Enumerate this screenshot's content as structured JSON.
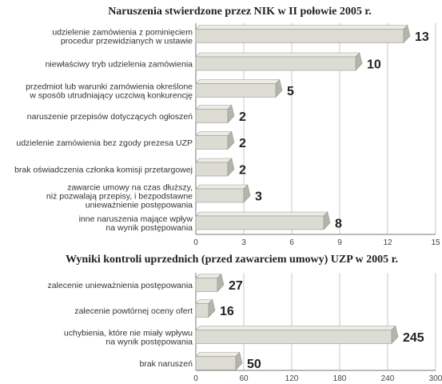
{
  "colors": {
    "bar_face": "#dcdcd4",
    "bar_top": "#ecece6",
    "bar_side": "#b4b4ac",
    "bar_edge": "#9a9a92"
  },
  "chart_data": [
    {
      "type": "bar",
      "orientation": "horizontal",
      "title": "Naruszenia stwierdzone przez NIK w II połowie 2005 r.",
      "categories": [
        [
          "udzielenie zamówienia z pominięciem",
          "procedur przewidzianych w ustawie"
        ],
        [
          "niewłaściwy tryb udzielenia zamówienia"
        ],
        [
          "przedmiot lub warunki zamówienia określone",
          "w sposób utrudniający uczciwą konkurencję"
        ],
        [
          "naruszenie przepisów dotyczących ogłoszeń"
        ],
        [
          "udzielenie zamówienia bez zgody prezesa UZP"
        ],
        [
          "brak oświadczenia członka komisji przetargowej"
        ],
        [
          "zawarcie umowy na czas dłuższy,",
          "niż pozwalają przepisy, i bezpodstawne",
          "unieważnienie postępowania"
        ],
        [
          "inne naruszenia mające wpływ",
          "na wynik postępowania"
        ]
      ],
      "values": [
        13,
        10,
        5,
        2,
        2,
        2,
        3,
        8
      ],
      "value_labels": [
        "13",
        "10",
        "5",
        "2",
        "2",
        "2",
        "3",
        "8"
      ],
      "xlim": [
        0,
        15
      ],
      "xticks": [
        0,
        3,
        6,
        9,
        12,
        15
      ],
      "grid": true
    },
    {
      "type": "bar",
      "orientation": "horizontal",
      "title": "Wyniki kontroli uprzednich (przed zawarciem umowy) UZP w 2005 r.",
      "categories": [
        [
          "zalecenie unieważnienia postępowania"
        ],
        [
          "zalecenie powtórnej oceny ofert"
        ],
        [
          "uchybienia, które nie miały wpływu",
          "na wynik postępowania"
        ],
        [
          "brak naruszeń"
        ]
      ],
      "values": [
        27,
        16,
        245,
        50
      ],
      "value_labels": [
        "27",
        "16",
        "245",
        "50"
      ],
      "xlim": [
        0,
        300
      ],
      "xticks": [
        0,
        60,
        120,
        180,
        240,
        300
      ],
      "grid": true
    }
  ]
}
